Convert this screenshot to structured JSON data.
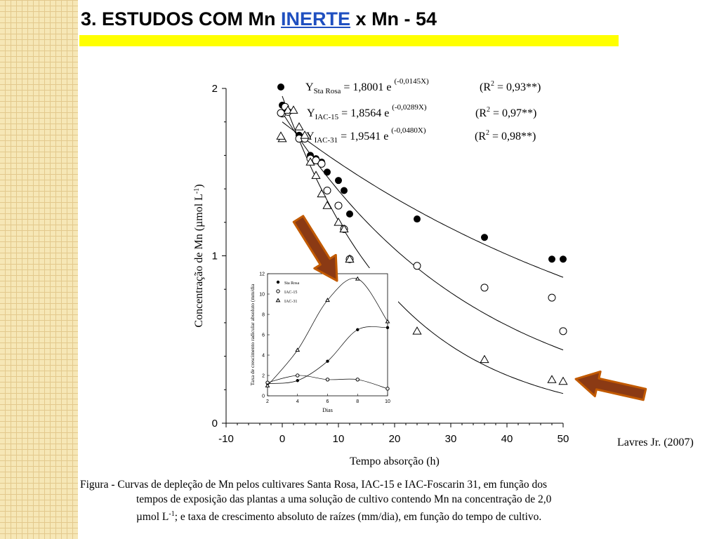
{
  "slide": {
    "title_prefix": "3. ESTUDOS COM Mn ",
    "title_highlight": "INERTE",
    "title_suffix": " x Mn - 54",
    "credit": "Lavres Jr. (2007)",
    "caption_line1": "Figura - Curvas de depleção de Mn pelos cultivares Santa Rosa, IAC-15 e IAC-Foscarin 31, em função dos",
    "caption_line2": "tempos de exposição das plantas a uma solução de cultivo contendo Mn na concentração de 2,0",
    "caption_line3a": "µmol L",
    "caption_line3_sup": "-1",
    "caption_line3b": "; e taxa de crescimento absoluto de raízes (mm/dia), em função do tempo de cultivo.",
    "colors": {
      "title_highlight": "#1f4fc0",
      "title_bar": "#ffff00",
      "arrow_fill": "#8b3a14",
      "arrow_stroke": "#c25a00",
      "sidebar": "#f6e7b6"
    }
  },
  "chart_data": [
    {
      "type": "scatter",
      "xlabel": "Tempo absorção (h)",
      "ylabel": "Concentração de Mn (µmol L-1)",
      "xlim": [
        -10,
        50
      ],
      "ylim": [
        0,
        2
      ],
      "x_ticks": [
        "-10",
        "0",
        "10",
        "20",
        "30",
        "40",
        "50"
      ],
      "y_ticks": [
        "0",
        "1",
        "2"
      ],
      "series": [
        {
          "name": "Sta Rosa",
          "marker": "filled-circle",
          "eq_y": "Y",
          "eq_sub": "Sta Rosa",
          "eq_mid": " = 1,8001 e ",
          "eq_exp": "(-0,0145X)",
          "eq_r": "(R",
          "eq_r_sup": "2",
          "eq_r_end": " = 0,93**)",
          "curve": {
            "a": 1.8001,
            "b": 0.0145
          },
          "x": [
            0,
            0.5,
            3,
            5,
            6,
            7,
            8,
            10,
            11,
            12,
            24,
            36,
            48,
            50
          ],
          "y": [
            1.9,
            1.89,
            1.72,
            1.6,
            1.58,
            1.56,
            1.5,
            1.45,
            1.39,
            1.25,
            1.22,
            1.11,
            0.98,
            0.98
          ]
        },
        {
          "name": "IAC-15",
          "marker": "open-circle",
          "eq_y": "Y",
          "eq_sub": "IAC-15",
          "eq_mid": " = 1,8564 e ",
          "eq_exp": "(-0,0289X)",
          "eq_r": "(R",
          "eq_r_sup": "2",
          "eq_r_end": " = 0,97**)",
          "curve": {
            "a": 1.8564,
            "b": 0.0289
          },
          "x": [
            0,
            0.5,
            1,
            3,
            4,
            5,
            6,
            7,
            8,
            10,
            11,
            12,
            24,
            36,
            48,
            50
          ],
          "y": [
            1.85,
            1.89,
            1.86,
            1.7,
            1.7,
            1.58,
            1.57,
            1.55,
            1.39,
            1.3,
            1.16,
            0.98,
            0.94,
            0.81,
            0.75,
            0.55
          ]
        },
        {
          "name": "IAC-31",
          "marker": "open-triangle",
          "eq_y": "Y",
          "eq_sub": "IAC-31",
          "eq_mid": " = 1,9541 e ",
          "eq_exp": "(-0,0480X)",
          "eq_r": "(R",
          "eq_r_sup": "2",
          "eq_r_end": " = 0,98**)",
          "curve": {
            "a": 1.9541,
            "b": 0.048
          },
          "x": [
            0,
            1,
            2,
            3,
            4,
            5,
            6,
            7,
            8,
            10,
            11,
            12,
            24,
            36,
            48,
            50
          ],
          "y": [
            1.7,
            1.87,
            1.87,
            1.77,
            1.72,
            1.56,
            1.48,
            1.37,
            1.3,
            1.2,
            1.16,
            0.98,
            0.55,
            0.38,
            0.26,
            0.25
          ]
        }
      ]
    },
    {
      "type": "scatter",
      "xlabel": "Dias",
      "ylabel": "Taxa de crescimento radicular absoluto (mm/dia",
      "xlim": [
        2,
        10
      ],
      "ylim": [
        0,
        12
      ],
      "x_ticks": [
        "2",
        "4",
        "6",
        "8",
        "10"
      ],
      "y_ticks": [
        "0",
        "2",
        "4",
        "6",
        "8",
        "10",
        "12"
      ],
      "series": [
        {
          "name": "Sta Rosa",
          "marker": "filled-circle",
          "x": [
            2,
            4,
            6,
            8,
            10
          ],
          "y": [
            1.2,
            1.5,
            3.4,
            6.5,
            6.7
          ]
        },
        {
          "name": "IAC-15",
          "marker": "open-circle",
          "x": [
            2,
            4,
            6,
            8,
            10
          ],
          "y": [
            1.3,
            2.0,
            1.6,
            1.6,
            0.7
          ]
        },
        {
          "name": "IAC-31",
          "marker": "open-triangle",
          "x": [
            2,
            4,
            6,
            8,
            10
          ],
          "y": [
            1.0,
            4.5,
            9.4,
            11.5,
            7.3
          ]
        }
      ]
    }
  ]
}
